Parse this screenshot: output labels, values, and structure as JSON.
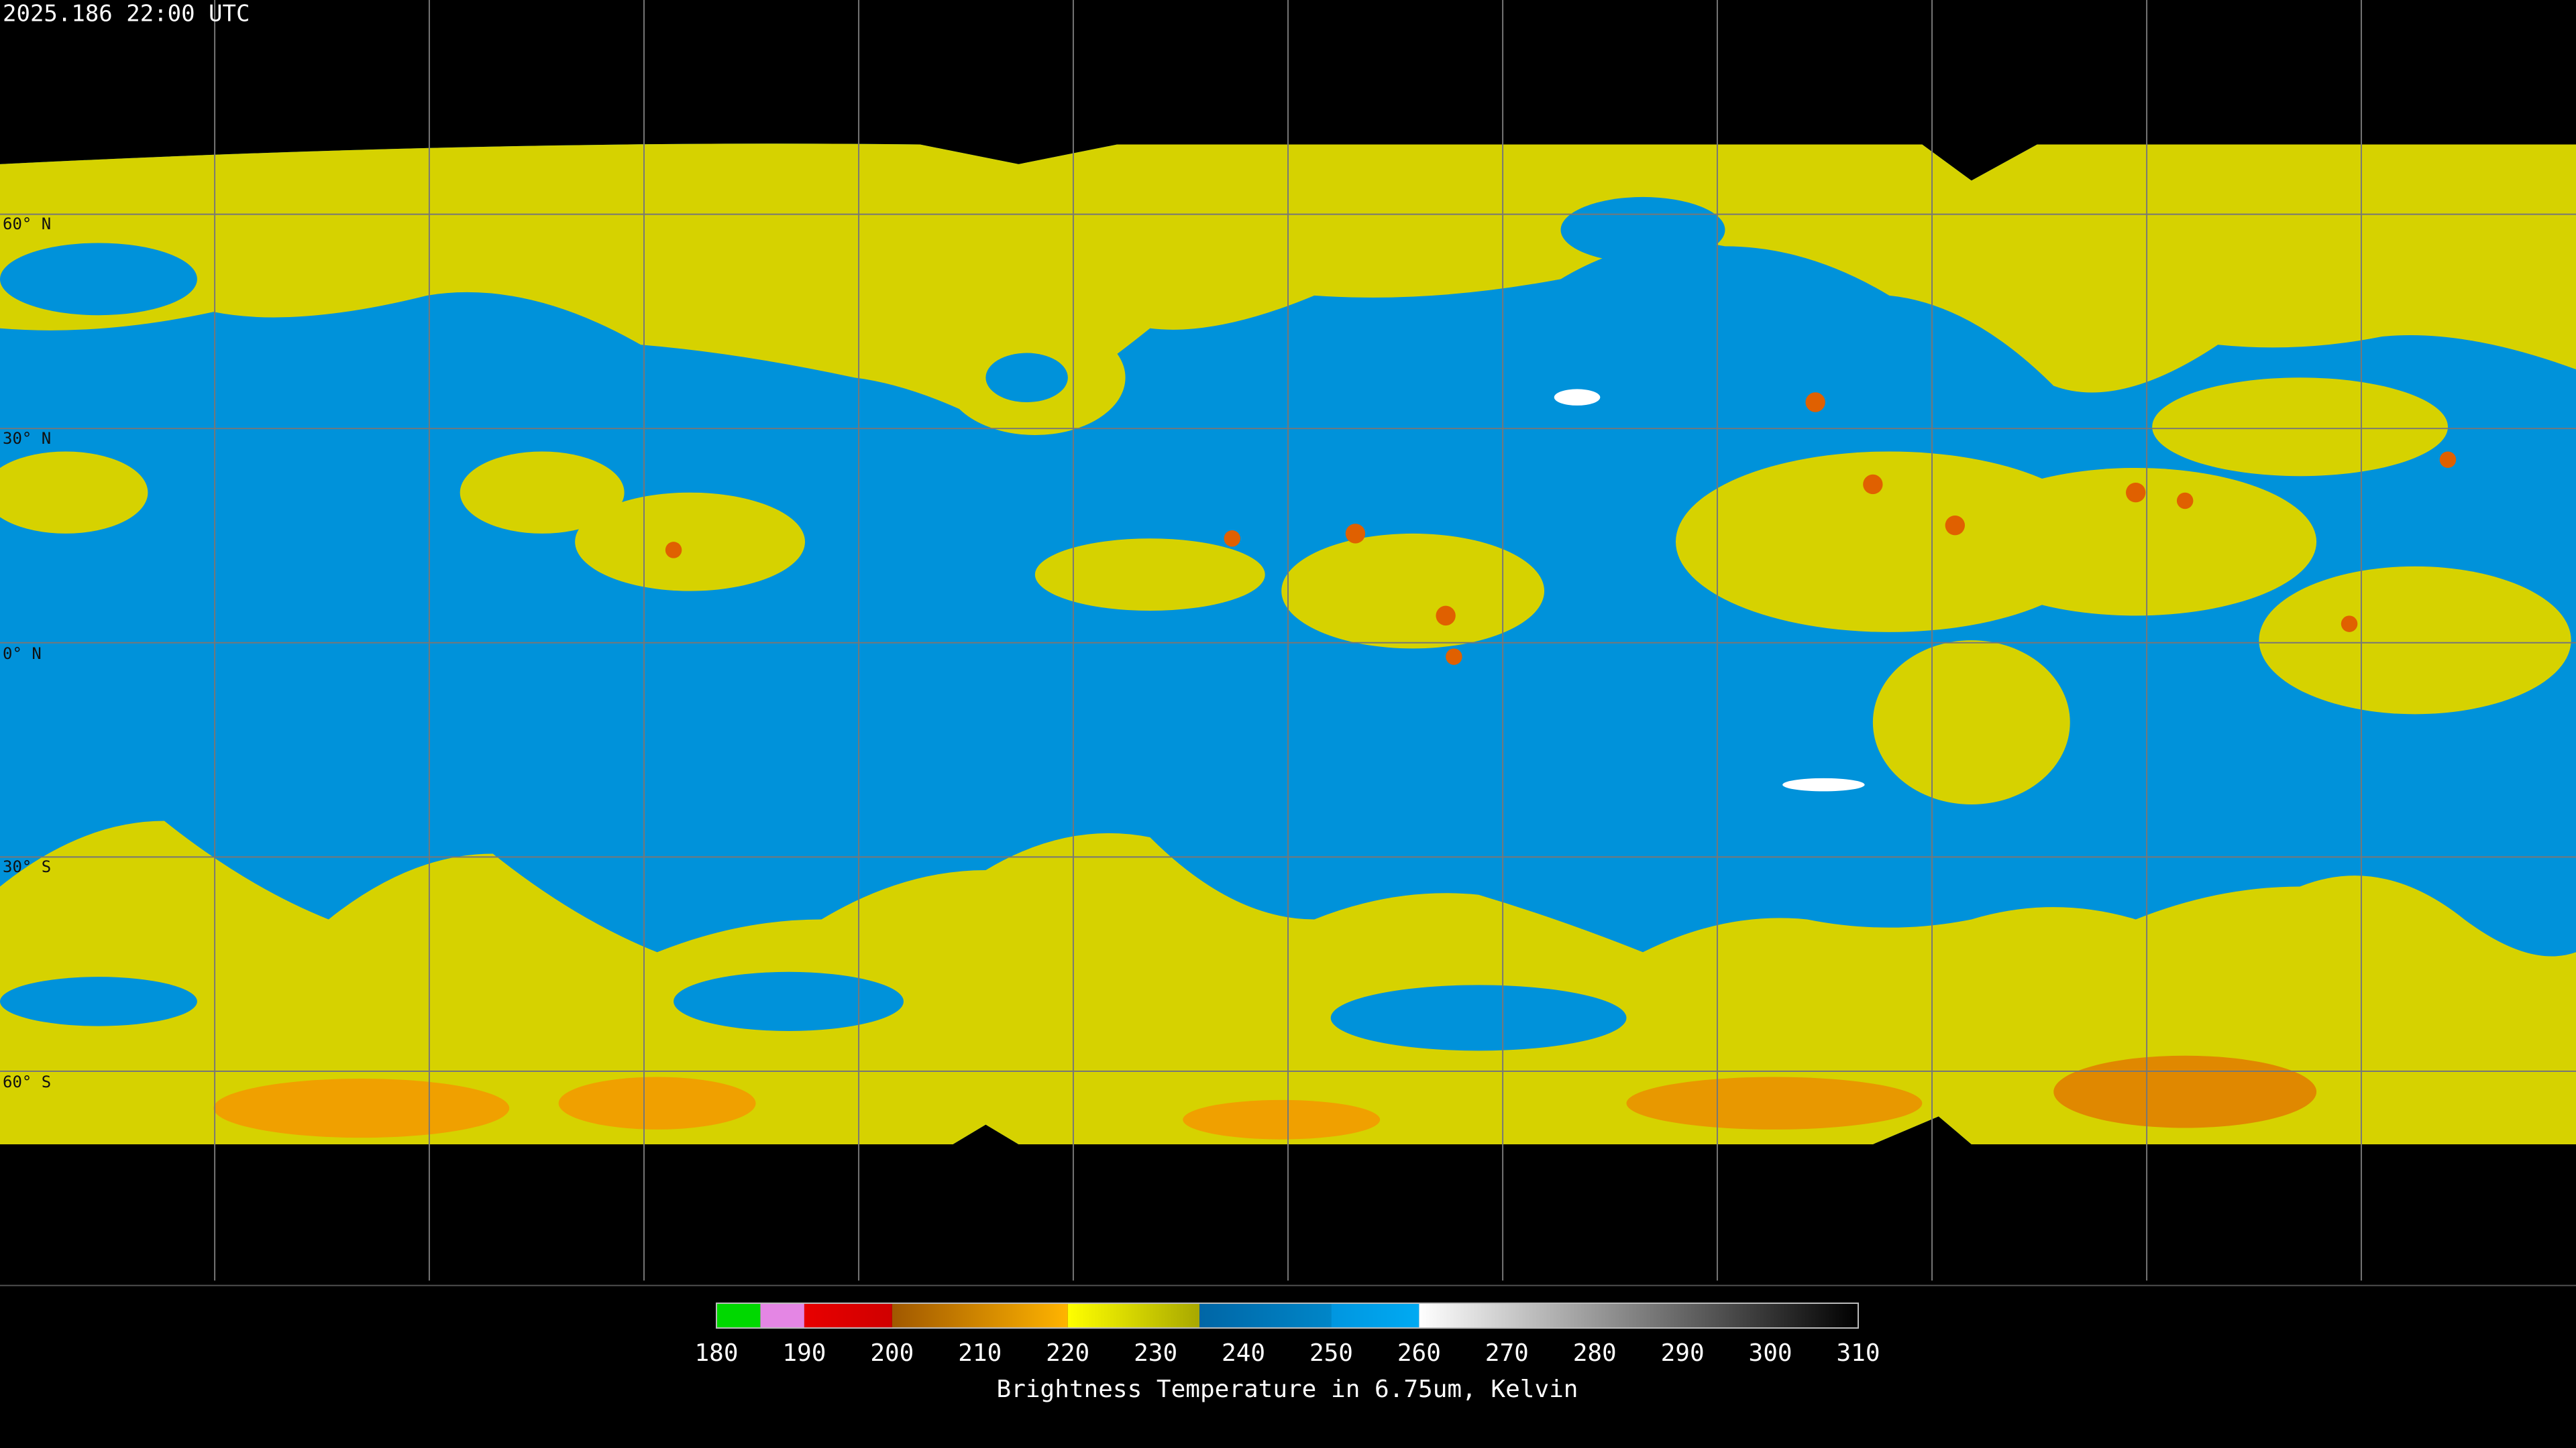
{
  "timestamp": "2025.186 22:00 UTC",
  "latitude_labels": [
    "60° N",
    "30° N",
    "0° N",
    "30° S",
    "60° S"
  ],
  "colorbar": {
    "title": "Brightness Temperature in 6.75um, Kelvin",
    "lim": [
      180,
      310
    ],
    "ticks": [
      180,
      190,
      200,
      210,
      220,
      230,
      240,
      250,
      260,
      270,
      280,
      290,
      300,
      310
    ],
    "segments": [
      {
        "from": 180,
        "to": 185,
        "colors": [
          "#00d800",
          "#00d800"
        ]
      },
      {
        "from": 185,
        "to": 190,
        "colors": [
          "#e486e4",
          "#e486e4"
        ]
      },
      {
        "from": 190,
        "to": 200,
        "colors": [
          "#e80000",
          "#d00000"
        ]
      },
      {
        "from": 200,
        "to": 220,
        "colors": [
          "#a05800",
          "#ffb400"
        ]
      },
      {
        "from": 220,
        "to": 235,
        "colors": [
          "#ffff00",
          "#a8a800"
        ]
      },
      {
        "from": 235,
        "to": 250,
        "colors": [
          "#0066a6",
          "#0086c8"
        ]
      },
      {
        "from": 250,
        "to": 260,
        "colors": [
          "#0096e0",
          "#00aaf2"
        ]
      },
      {
        "from": 260,
        "to": 310,
        "colors": [
          "#ffffff",
          "#000000"
        ]
      }
    ]
  }
}
